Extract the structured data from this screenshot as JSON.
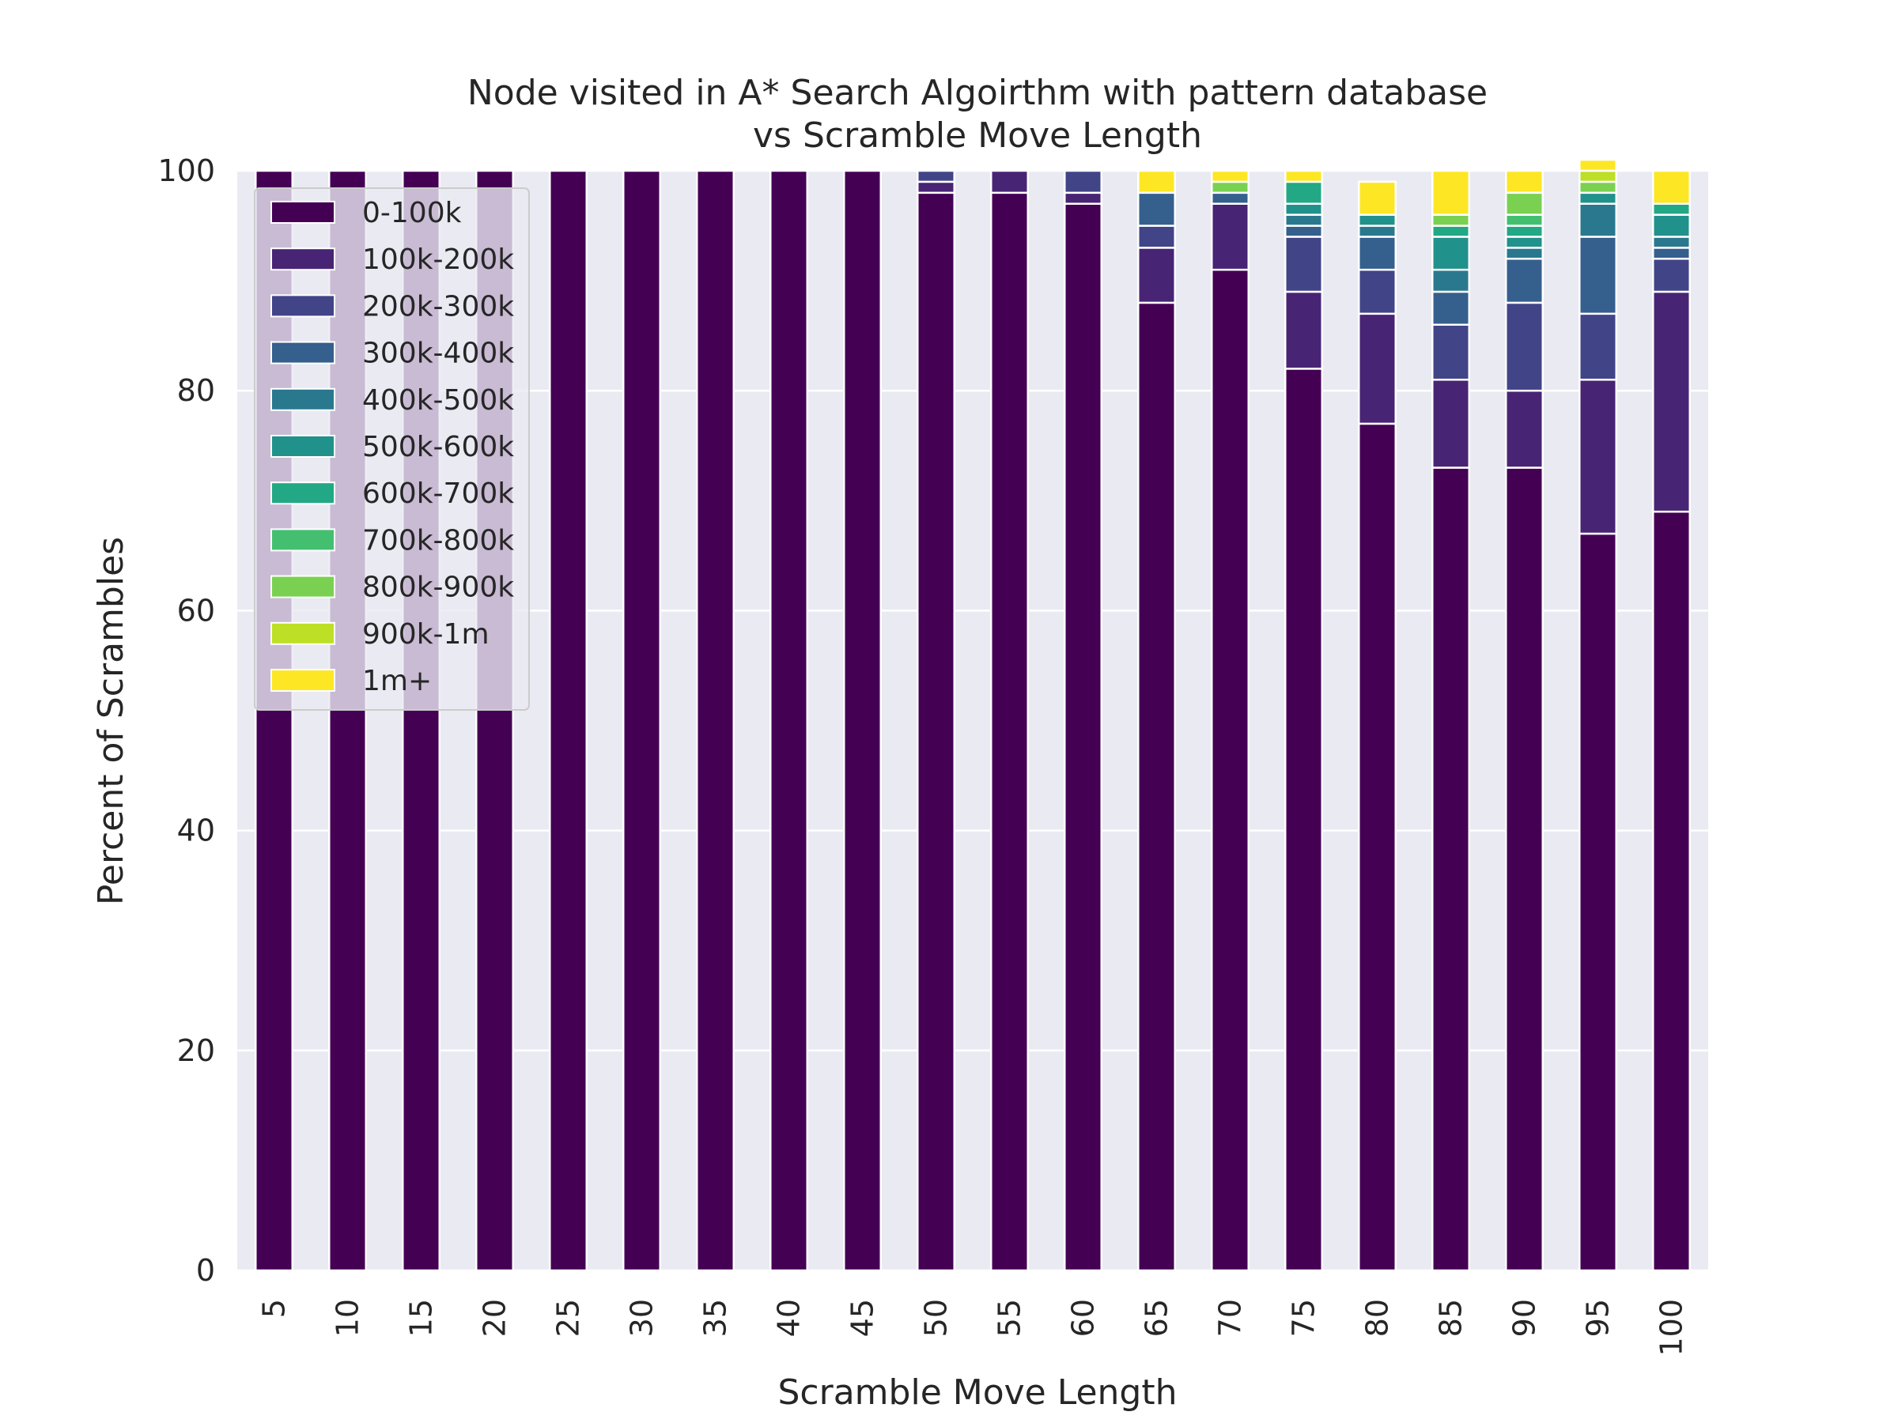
{
  "chart_data": {
    "type": "bar",
    "stacked": true,
    "title": "Node visited in A* Search Algoirthm with pattern database",
    "subtitle": "vs Scramble Move Length",
    "xlabel": "Scramble Move Length",
    "ylabel": "Percent of Scrambles",
    "ylim": [
      0,
      100
    ],
    "yticks": [
      "0",
      "20",
      "40",
      "60",
      "80",
      "100"
    ],
    "grid": true,
    "legend_position": "upper-left",
    "categories": [
      "5",
      "10",
      "15",
      "20",
      "25",
      "30",
      "35",
      "40",
      "45",
      "50",
      "55",
      "60",
      "65",
      "70",
      "75",
      "80",
      "85",
      "90",
      "95",
      "100"
    ],
    "series": [
      {
        "name": "0-100k",
        "color": "#440154",
        "values": [
          100,
          100,
          100,
          100,
          100,
          100,
          100,
          100,
          100,
          98,
          98,
          97,
          88,
          91,
          82,
          77,
          73,
          73,
          67,
          69
        ]
      },
      {
        "name": "100k-200k",
        "color": "#482475",
        "values": [
          0,
          0,
          0,
          0,
          0,
          0,
          0,
          0,
          0,
          1,
          2,
          1,
          5,
          6,
          7,
          10,
          8,
          7,
          14,
          20
        ]
      },
      {
        "name": "200k-300k",
        "color": "#414487",
        "values": [
          0,
          0,
          0,
          0,
          0,
          0,
          0,
          0,
          0,
          1,
          0,
          2,
          2,
          0,
          5,
          4,
          5,
          8,
          6,
          3
        ]
      },
      {
        "name": "300k-400k",
        "color": "#355f8d",
        "values": [
          0,
          0,
          0,
          0,
          0,
          0,
          0,
          0,
          0,
          0,
          0,
          0,
          3,
          1,
          1,
          3,
          3,
          4,
          7,
          1
        ]
      },
      {
        "name": "400k-500k",
        "color": "#2a788e",
        "values": [
          0,
          0,
          0,
          0,
          0,
          0,
          0,
          0,
          0,
          0,
          0,
          0,
          0,
          0,
          1,
          1,
          2,
          1,
          3,
          1
        ]
      },
      {
        "name": "500k-600k",
        "color": "#21918c",
        "values": [
          0,
          0,
          0,
          0,
          0,
          0,
          0,
          0,
          0,
          0,
          0,
          0,
          0,
          0,
          1,
          1,
          3,
          1,
          1,
          2
        ]
      },
      {
        "name": "600k-700k",
        "color": "#22a884",
        "values": [
          0,
          0,
          0,
          0,
          0,
          0,
          0,
          0,
          0,
          0,
          0,
          0,
          0,
          0,
          2,
          0,
          1,
          1,
          0,
          1
        ]
      },
      {
        "name": "700k-800k",
        "color": "#44bf70",
        "values": [
          0,
          0,
          0,
          0,
          0,
          0,
          0,
          0,
          0,
          0,
          0,
          0,
          0,
          0,
          0,
          0,
          0,
          1,
          0,
          0
        ]
      },
      {
        "name": "800k-900k",
        "color": "#7ad151",
        "values": [
          0,
          0,
          0,
          0,
          0,
          0,
          0,
          0,
          0,
          0,
          0,
          0,
          0,
          1,
          0,
          0,
          1,
          2,
          1,
          0
        ]
      },
      {
        "name": "900k-1m",
        "color": "#bddf26",
        "values": [
          0,
          0,
          0,
          0,
          0,
          0,
          0,
          0,
          0,
          0,
          0,
          0,
          0,
          0,
          0,
          0,
          0,
          0,
          1,
          0
        ]
      },
      {
        "name": "1m+",
        "color": "#fde725",
        "values": [
          0,
          0,
          0,
          0,
          0,
          0,
          0,
          0,
          0,
          0,
          0,
          0,
          2,
          1,
          1,
          3,
          4,
          2,
          1,
          3
        ]
      }
    ]
  }
}
